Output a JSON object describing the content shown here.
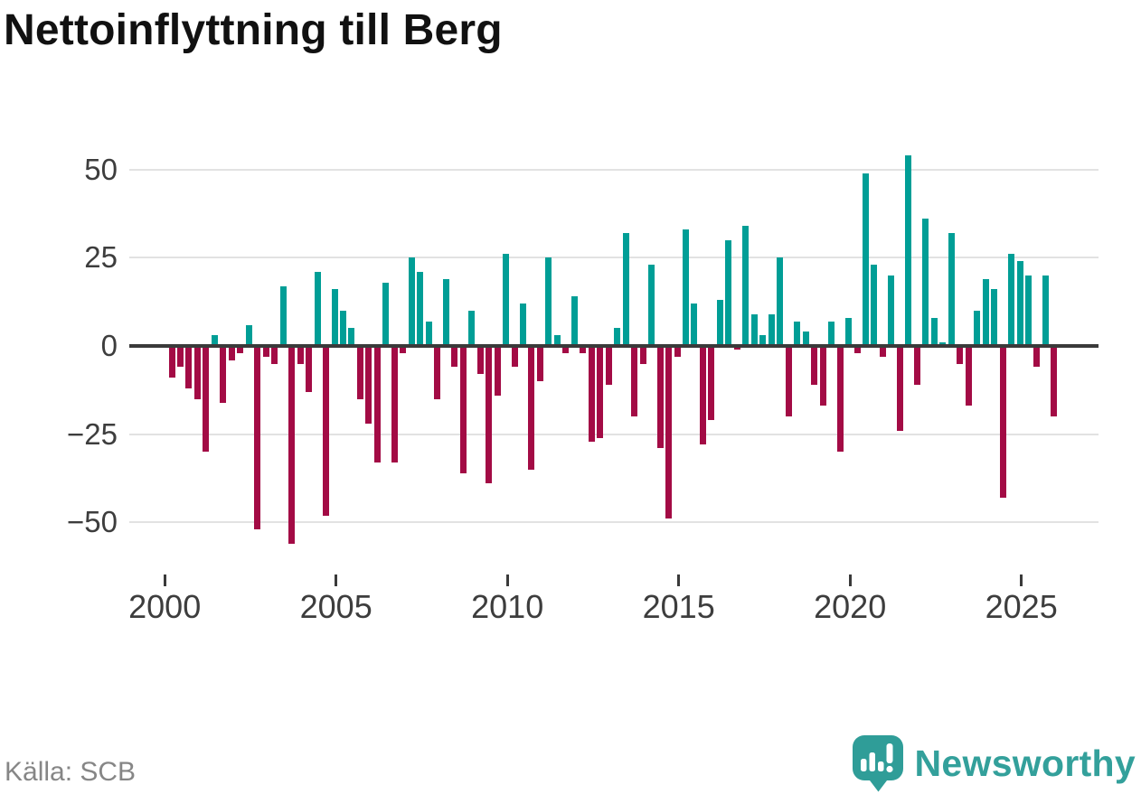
{
  "title": "Nettoinflyttning till Berg",
  "source": "Källa: SCB",
  "logo": {
    "brand": "Newsworthy"
  },
  "colors": {
    "positive": "#009e96",
    "negative": "#a30b45",
    "zero_axis": "#3a3a3a",
    "gridline": "#e2e2e2",
    "tick_label": "#3d3d3d",
    "source_text": "#868686",
    "brand_teal": "#33a09b"
  },
  "chart_data": {
    "type": "bar",
    "title": "Nettoinflyttning till Berg",
    "xlabel": "",
    "ylabel": "",
    "frequency": "quarterly",
    "start_year": 2000,
    "start_quarter": 1,
    "values": [
      -9,
      -6,
      -12,
      -15,
      -30,
      3,
      -16,
      -4,
      -2,
      6,
      -52,
      -3,
      -5,
      17,
      -56,
      -5,
      -13,
      21,
      -48,
      16,
      10,
      5,
      -15,
      -22,
      -33,
      18,
      -33,
      -2,
      25,
      21,
      7,
      -15,
      19,
      -6,
      -36,
      10,
      -8,
      -39,
      -14,
      26,
      -6,
      12,
      -35,
      -10,
      25,
      3,
      -2,
      14,
      -2,
      -27,
      -26,
      -11,
      5,
      32,
      -20,
      -5,
      23,
      -29,
      -49,
      -3,
      33,
      12,
      -28,
      -21,
      13,
      30,
      -1,
      34,
      9,
      3,
      9,
      25,
      -20,
      7,
      4,
      -11,
      -17,
      7,
      -30,
      8,
      -2,
      49,
      23,
      -3,
      20,
      -24,
      54,
      -11,
      36,
      8,
      1,
      32,
      -5,
      -17,
      10,
      19,
      16,
      -43,
      26,
      24,
      20,
      -6,
      20,
      -20
    ],
    "y_ticks": [
      50,
      25,
      0,
      -25,
      -50
    ],
    "x_tick_years": [
      2000,
      2005,
      2010,
      2015,
      2020,
      2025
    ],
    "ylim": [
      -60,
      57
    ],
    "grid": true,
    "legend": false,
    "positive_color": "#009e96",
    "negative_color": "#a30b45"
  }
}
